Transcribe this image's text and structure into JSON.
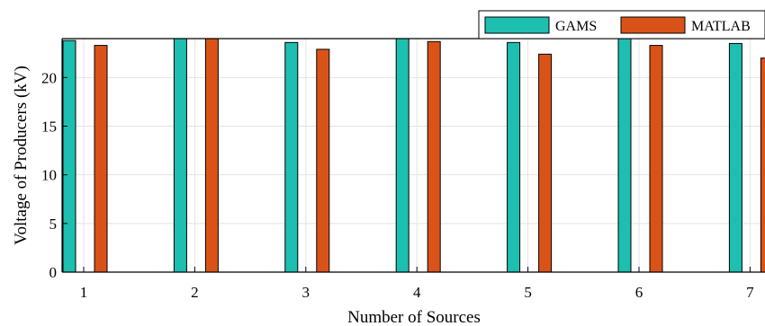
{
  "chart_data": {
    "type": "bar",
    "xlabel": "Number of Sources",
    "ylabel": "Voltage of Producers (kV)",
    "categories": [
      "1",
      "2",
      "3",
      "4",
      "5",
      "6",
      "7"
    ],
    "ylim": [
      0,
      24
    ],
    "yticks": [
      "0",
      "5",
      "10",
      "15",
      "20"
    ],
    "grid": true,
    "legend_position": "top-right",
    "series": [
      {
        "name": "GAMS",
        "color": "#1dbfb0",
        "values": [
          23.8,
          24.0,
          23.6,
          24.0,
          23.6,
          24.0,
          23.5
        ]
      },
      {
        "name": "MATLAB",
        "color": "#d95319",
        "values": [
          23.3,
          24.0,
          22.9,
          23.7,
          22.4,
          23.3,
          22.0
        ]
      }
    ]
  }
}
